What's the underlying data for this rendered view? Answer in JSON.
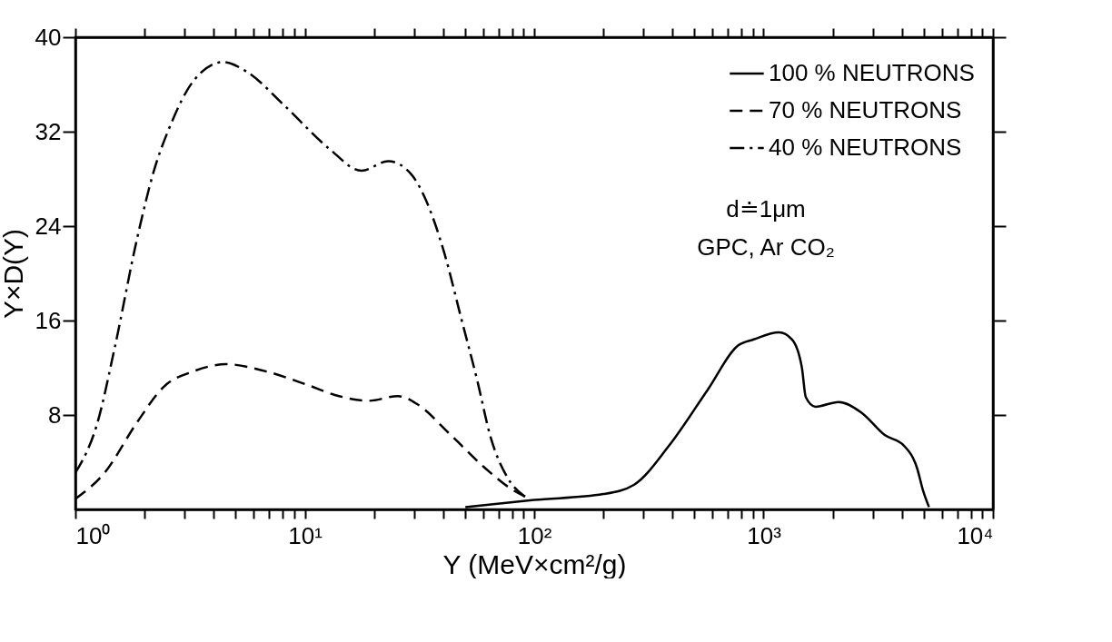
{
  "chart_data": {
    "type": "line",
    "xlabel": "Y (MeV×cm²/g)",
    "ylabel": "Y×D(Y)",
    "log": "x",
    "grid": false,
    "legend": "top right",
    "xlim": [
      1,
      10000
    ],
    "ylim": [
      0,
      40
    ],
    "xticks": [
      {
        "value": 1,
        "label": "10⁰"
      },
      {
        "value": 2,
        "label": null
      },
      {
        "value": 3,
        "label": null
      },
      {
        "value": 4,
        "label": null
      },
      {
        "value": 5,
        "label": null
      },
      {
        "value": 6,
        "label": null
      },
      {
        "value": 7,
        "label": null
      },
      {
        "value": 8,
        "label": null
      },
      {
        "value": 9,
        "label": null
      },
      {
        "value": 10,
        "label": "10¹"
      },
      {
        "value": 20,
        "label": null
      },
      {
        "value": 30,
        "label": null
      },
      {
        "value": 40,
        "label": null
      },
      {
        "value": 50,
        "label": null
      },
      {
        "value": 60,
        "label": null
      },
      {
        "value": 70,
        "label": null
      },
      {
        "value": 80,
        "label": null
      },
      {
        "value": 90,
        "label": null
      },
      {
        "value": 100,
        "label": "10²"
      },
      {
        "value": 200,
        "label": null
      },
      {
        "value": 300,
        "label": null
      },
      {
        "value": 400,
        "label": null
      },
      {
        "value": 500,
        "label": null
      },
      {
        "value": 600,
        "label": null
      },
      {
        "value": 700,
        "label": null
      },
      {
        "value": 800,
        "label": null
      },
      {
        "value": 900,
        "label": null
      },
      {
        "value": 1000,
        "label": "10³"
      },
      {
        "value": 2000,
        "label": null
      },
      {
        "value": 3000,
        "label": null
      },
      {
        "value": 4000,
        "label": null
      },
      {
        "value": 5000,
        "label": null
      },
      {
        "value": 6000,
        "label": null
      },
      {
        "value": 7000,
        "label": null
      },
      {
        "value": 8000,
        "label": null
      },
      {
        "value": 9000,
        "label": null
      },
      {
        "value": 10000,
        "label": "10⁴"
      }
    ],
    "yticks": [
      8,
      16,
      24,
      32,
      40
    ],
    "series": [
      {
        "name": "100 % NEUTRONS",
        "color": "#000000",
        "line_style": "solid",
        "x": [
          50.1,
          100,
          200,
          273,
          387,
          569,
          776,
          906,
          1167,
          1330,
          1469,
          1528,
          1683,
          2123,
          2673,
          3373,
          4093,
          4667,
          4955,
          5260
        ],
        "values": [
          0.2,
          0.8,
          1.3,
          2.1,
          5.4,
          10.1,
          13.9,
          14.4,
          15.0,
          14.4,
          12.0,
          9.5,
          8.7,
          9.1,
          8.2,
          6.3,
          5.4,
          3.5,
          1.6,
          0.2
        ]
      },
      {
        "name": "70 % NEUTRONS",
        "color": "#000000",
        "line_style": "dashed",
        "x": [
          1,
          1.34,
          1.86,
          2.43,
          3.27,
          4.55,
          6.76,
          10.1,
          14.1,
          18.9,
          25.5,
          31.0,
          43.3,
          60.3,
          78.5,
          95.5
        ],
        "values": [
          0.9,
          3.1,
          7.4,
          10.4,
          11.7,
          12.3,
          11.7,
          10.6,
          9.6,
          9.2,
          9.6,
          8.9,
          6.3,
          3.6,
          1.8,
          0.9
        ]
      },
      {
        "name": "40 % NEUTRONS",
        "color": "#000000",
        "line_style": "dashdot",
        "x": [
          1,
          1.25,
          1.48,
          1.86,
          2.2,
          2.59,
          3.27,
          4.41,
          5.56,
          8.26,
          12.7,
          17.7,
          23.1,
          29.1,
          33.2,
          40.6,
          47.9,
          56.5,
          64.6,
          75.9,
          89.7,
          95.5
        ],
        "values": [
          3.1,
          7.4,
          13.6,
          23.0,
          28.7,
          32.5,
          36.3,
          37.9,
          37.1,
          34.1,
          30.6,
          28.7,
          29.5,
          28.4,
          26.5,
          21.7,
          16.3,
          10.9,
          6.1,
          2.8,
          1.2,
          0.9
        ]
      }
    ],
    "annotations": [
      "d≐1μm",
      "GPC, Ar CO₂"
    ]
  }
}
